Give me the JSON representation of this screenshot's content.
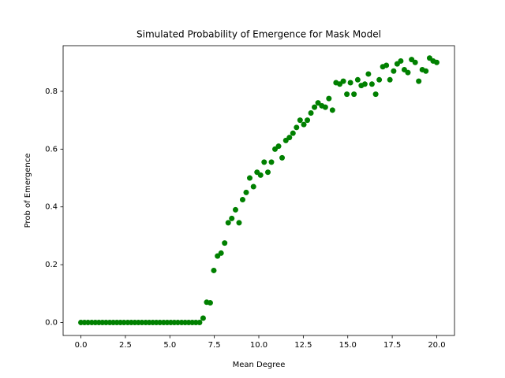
{
  "chart_data": {
    "type": "scatter",
    "title": "Simulated Probability of Emergence for Mask Model",
    "xlabel": "Mean Degree",
    "ylabel": "Prob of Emergence",
    "color": "#008000",
    "grid": false,
    "xlim": [
      -1,
      21
    ],
    "ylim": [
      -0.045,
      0.958
    ],
    "xticks": [
      {
        "value": 0,
        "label": "0.0"
      },
      {
        "value": 2.5,
        "label": "2.5"
      },
      {
        "value": 5,
        "label": "5.0"
      },
      {
        "value": 7.5,
        "label": "7.5"
      },
      {
        "value": 10,
        "label": "10.0"
      },
      {
        "value": 12.5,
        "label": "12.5"
      },
      {
        "value": 15,
        "label": "15.0"
      },
      {
        "value": 17.5,
        "label": "17.5"
      },
      {
        "value": 20,
        "label": "20.0"
      }
    ],
    "yticks": [
      {
        "value": 0,
        "label": "0.0"
      },
      {
        "value": 0.2,
        "label": "0.2"
      },
      {
        "value": 0.4,
        "label": "0.4"
      },
      {
        "value": 0.6,
        "label": "0.6"
      },
      {
        "value": 0.8,
        "label": "0.8"
      }
    ],
    "x": [
      0,
      0.2,
      0.4,
      0.61,
      0.81,
      1.01,
      1.21,
      1.41,
      1.62,
      1.82,
      2.02,
      2.22,
      2.42,
      2.63,
      2.83,
      3.03,
      3.23,
      3.43,
      3.64,
      3.84,
      4.04,
      4.24,
      4.44,
      4.65,
      4.85,
      5.05,
      5.25,
      5.45,
      5.66,
      5.86,
      6.06,
      6.26,
      6.46,
      6.67,
      6.87,
      7.07,
      7.27,
      7.47,
      7.68,
      7.88,
      8.08,
      8.28,
      8.48,
      8.69,
      8.89,
      9.09,
      9.29,
      9.49,
      9.7,
      9.9,
      10.1,
      10.3,
      10.51,
      10.71,
      10.91,
      11.11,
      11.31,
      11.52,
      11.72,
      11.92,
      12.12,
      12.32,
      12.53,
      12.73,
      12.93,
      13.13,
      13.33,
      13.54,
      13.74,
      13.94,
      14.14,
      14.34,
      14.55,
      14.75,
      14.95,
      15.15,
      15.35,
      15.56,
      15.76,
      15.96,
      16.16,
      16.36,
      16.57,
      16.77,
      16.97,
      17.17,
      17.37,
      17.58,
      17.78,
      17.98,
      18.18,
      18.38,
      18.59,
      18.79,
      18.99,
      19.19,
      19.39,
      19.6,
      19.8,
      20
    ],
    "values": [
      0,
      0,
      0,
      0,
      0,
      0,
      0,
      0,
      0,
      0,
      0,
      0,
      0,
      0,
      0,
      0,
      0,
      0,
      0,
      0,
      0,
      0,
      0,
      0,
      0,
      0,
      0,
      0,
      0,
      0,
      0,
      0,
      0,
      0,
      0.015,
      0.07,
      0.068,
      0.18,
      0.23,
      0.24,
      0.275,
      0.345,
      0.36,
      0.39,
      0.345,
      0.425,
      0.45,
      0.5,
      0.47,
      0.52,
      0.51,
      0.555,
      0.52,
      0.555,
      0.6,
      0.61,
      0.57,
      0.63,
      0.64,
      0.655,
      0.675,
      0.7,
      0.685,
      0.7,
      0.725,
      0.745,
      0.76,
      0.75,
      0.745,
      0.775,
      0.735,
      0.83,
      0.825,
      0.835,
      0.79,
      0.83,
      0.79,
      0.84,
      0.82,
      0.825,
      0.86,
      0.825,
      0.79,
      0.84,
      0.885,
      0.89,
      0.84,
      0.87,
      0.895,
      0.905,
      0.875,
      0.865,
      0.91,
      0.9,
      0.835,
      0.875,
      0.87,
      0.915,
      0.905,
      0.9
    ]
  }
}
